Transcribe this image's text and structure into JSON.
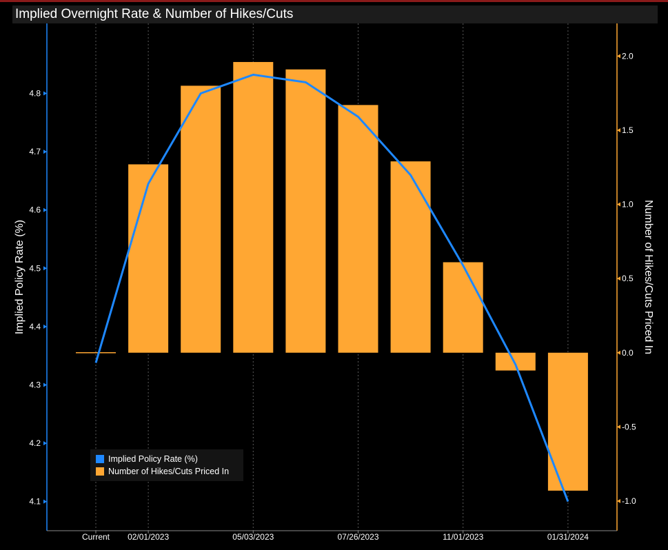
{
  "title": "Implied Overnight Rate & Number of Hikes/Cuts",
  "colors": {
    "rate_line": "#1e88ff",
    "bars": "#ffa733",
    "grid": "#5a5a5a",
    "left_axis": "#1e88ff",
    "right_axis": "#ffa733"
  },
  "legend": {
    "items": [
      {
        "label": "Implied Policy Rate (%)",
        "color": "#1e88ff"
      },
      {
        "label": "Number of Hikes/Cuts Priced In",
        "color": "#ffa733"
      }
    ]
  },
  "chart_data": {
    "type": "bar",
    "title": "Implied Overnight Rate & Number of Hikes/Cuts",
    "categories": [
      "Current",
      "02/01/2023",
      "",
      "05/03/2023",
      "",
      "07/26/2023",
      "",
      "11/01/2023",
      "",
      "01/31/2024"
    ],
    "x_tick_labels": [
      "Current",
      "02/01/2023",
      "05/03/2023",
      "07/26/2023",
      "11/01/2023",
      "01/31/2024"
    ],
    "series": [
      {
        "name": "Implied Policy Rate (%)",
        "type": "line",
        "axis": "left",
        "values": [
          4.338,
          4.645,
          4.8,
          4.832,
          4.819,
          4.76,
          4.66,
          4.505,
          4.335,
          4.1
        ]
      },
      {
        "name": "Number of Hikes/Cuts Priced In",
        "type": "bar",
        "axis": "right",
        "values": [
          0.0,
          1.27,
          1.8,
          1.96,
          1.91,
          1.67,
          1.29,
          0.61,
          -0.12,
          -0.93
        ]
      }
    ],
    "ylabel": "Implied Policy Rate (%)",
    "y2label": "Number of Hikes/Cuts Priced In",
    "ylim": [
      4.05,
      4.92
    ],
    "y_ticks": [
      "4.1",
      "4.2",
      "4.3",
      "4.4",
      "4.5",
      "4.6",
      "4.7",
      "4.8"
    ],
    "y2lim": [
      -1.2,
      2.22
    ],
    "y2_ticks": [
      "-1.0",
      "-0.5",
      "0.0",
      "0.5",
      "1.0",
      "1.5",
      "2.0"
    ],
    "grid": "vertical",
    "legend_position": "bottom-left"
  }
}
